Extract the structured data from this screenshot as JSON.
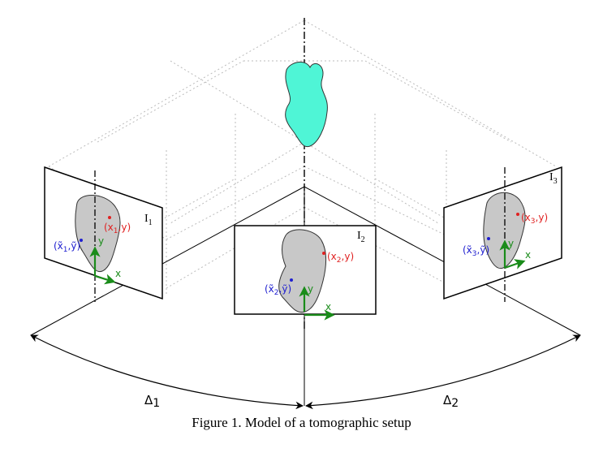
{
  "figure": {
    "caption": "Figure 1. Model of a tomographic setup",
    "colors": {
      "object_fill": "#4ff5d6",
      "projection_fill": "#c8c8c8",
      "axis_green": "#1a8c1a",
      "label_red": "#e02020",
      "label_blue": "#2020d0",
      "grid": "#bbbbbb"
    },
    "planes": [
      {
        "name": "I",
        "sub": "1"
      },
      {
        "name": "I",
        "sub": "2"
      },
      {
        "name": "I",
        "sub": "3"
      }
    ],
    "points": {
      "p1": {
        "pre": "(x",
        "sub": "1",
        "post": ",y)"
      },
      "q1": {
        "pre": "(x̃",
        "sub": "1",
        "post": ",ỹ)"
      },
      "p2": {
        "pre": "(x",
        "sub": "2",
        "post": ",y)"
      },
      "q2": {
        "pre": "(x̃",
        "sub": "2",
        "post": ",ỹ)"
      },
      "p3": {
        "pre": "(x",
        "sub": "3",
        "post": ",y)"
      },
      "q3": {
        "pre": "(x̃",
        "sub": "3",
        "post": ",ỹ)"
      }
    },
    "axes": {
      "x": "x",
      "y": "y"
    },
    "angles": [
      {
        "name": "Δ",
        "sub": "1"
      },
      {
        "name": "Δ",
        "sub": "2"
      }
    ]
  }
}
